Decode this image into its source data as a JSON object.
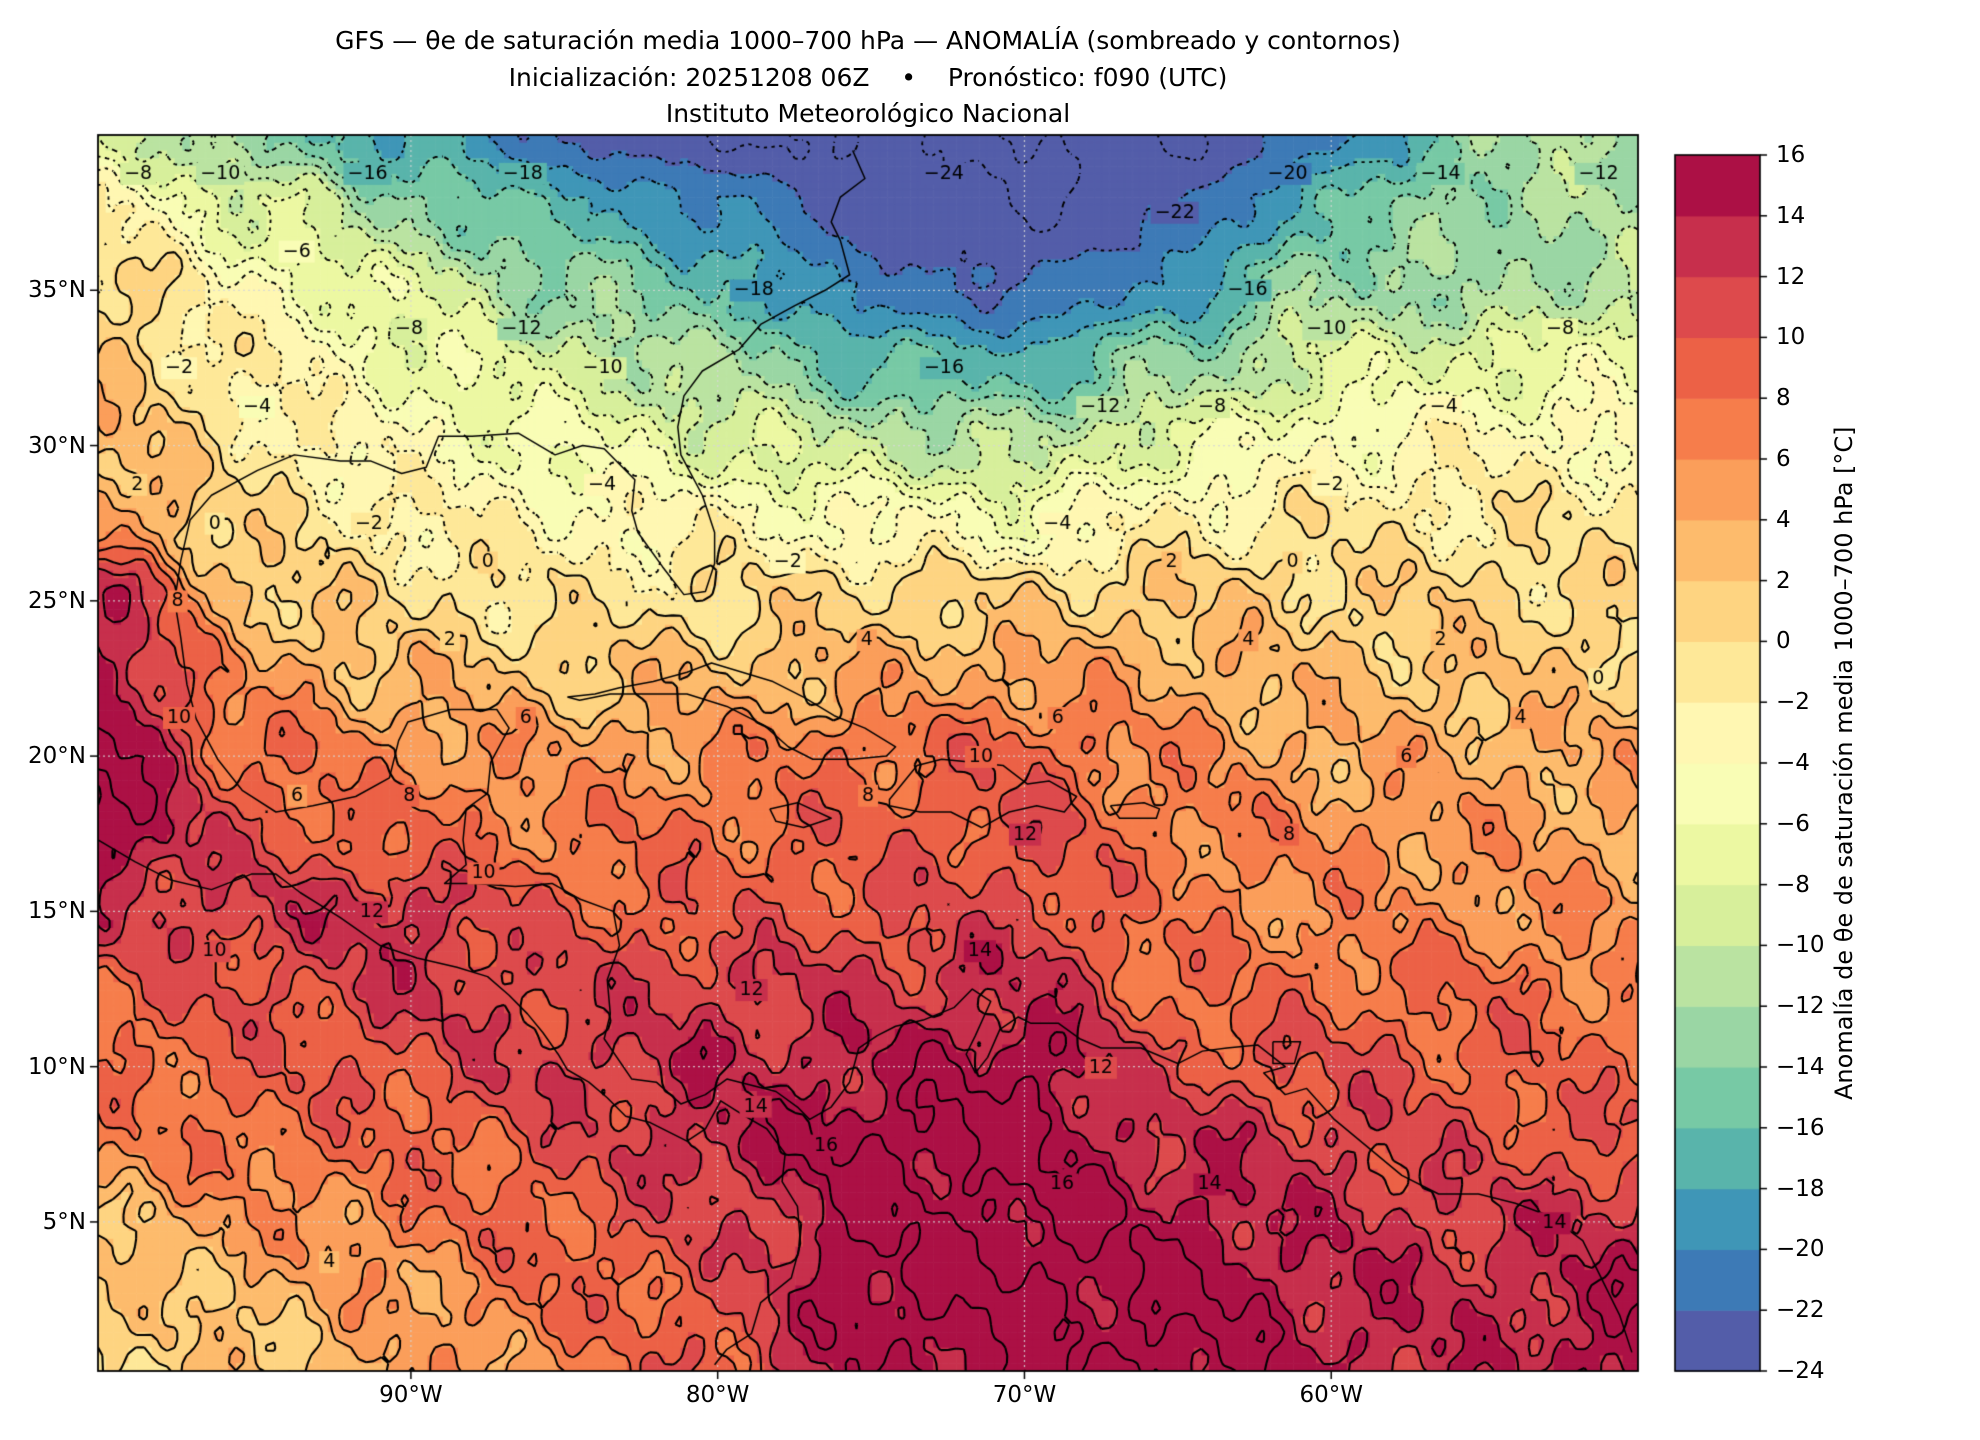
{
  "title": {
    "line1": "GFS — θe de saturación media 1000–700 hPa — ANOMALÍA (sombreado y contornos)",
    "line2": "Inicialización: 20251208 06Z    •    Pronóstico: f090 (UTC)",
    "line3": "Instituto Meteorológico Nacional"
  },
  "chart_data": {
    "type": "heatmap",
    "lon_range": [
      -100.2,
      -50.0
    ],
    "lat_range": [
      0.2,
      40.0
    ],
    "x_ticks": [
      {
        "lon": -90,
        "label": "90°W"
      },
      {
        "lon": -80,
        "label": "80°W"
      },
      {
        "lon": -70,
        "label": "70°W"
      },
      {
        "lon": -60,
        "label": "60°W"
      }
    ],
    "y_ticks": [
      {
        "lat": 35,
        "label": "35°N"
      },
      {
        "lat": 30,
        "label": "30°N"
      },
      {
        "lat": 25,
        "label": "25°N"
      },
      {
        "lat": 20,
        "label": "20°N"
      },
      {
        "lat": 15,
        "label": "15°N"
      },
      {
        "lat": 10,
        "label": "10°N"
      },
      {
        "lat": 5,
        "label": "5°N"
      }
    ],
    "grid_lines": {
      "lons": [
        -90,
        -80,
        -70,
        -60
      ],
      "lats": [
        5,
        10,
        15,
        20,
        25,
        30,
        35
      ]
    },
    "colorbar": {
      "label": "Anomalía de θe de saturación media 1000–700 hPa [°C]",
      "min": -24,
      "max": 16,
      "step": 2,
      "tick_values": [
        16,
        14,
        12,
        10,
        8,
        6,
        4,
        2,
        0,
        -2,
        -4,
        -6,
        -8,
        -10,
        -12,
        -14,
        -16,
        -18,
        -20,
        -22,
        -24
      ],
      "tick_labels": [
        "16",
        "14",
        "12",
        "10",
        "8",
        "6",
        "4",
        "2",
        "0",
        "−2",
        "−4",
        "−6",
        "−8",
        "−10",
        "−12",
        "−14",
        "−16",
        "−18",
        "−20",
        "−22",
        "−24"
      ],
      "colors": [
        "#535da9",
        "#3d7ab6",
        "#3f96b7",
        "#59b4ab",
        "#77c9a5",
        "#9ad6a4",
        "#bae3a1",
        "#d7ef9b",
        "#ecf8a2",
        "#f9fdb5",
        "#fff7b2",
        "#fee898",
        "#fed481",
        "#fdbb6c",
        "#fb9e5a",
        "#f67d4b",
        "#ec6146",
        "#dd4a4c",
        "#c72f4c",
        "#ac1045"
      ]
    },
    "contours": {
      "interval": 2,
      "min": -24,
      "max": 16,
      "negative_style": "dotted",
      "positive_style": "solid",
      "zero_style": "solid",
      "label_values": [
        -24,
        -22,
        -20,
        -18,
        -16,
        -14,
        -12,
        -10,
        -8,
        -6,
        -4,
        -2,
        0,
        2,
        4,
        6,
        8,
        10,
        12,
        14,
        16
      ]
    },
    "grid": {
      "lons": [
        -100,
        -95,
        -90,
        -85,
        -80,
        -75,
        -70,
        -65,
        -60,
        -55,
        -50
      ],
      "lats": [
        40,
        37.5,
        35,
        32.5,
        30,
        27.5,
        25,
        22.5,
        20,
        17.5,
        15,
        12.5,
        10,
        7.5,
        5,
        2.5,
        0
      ],
      "values": [
        [
          -8,
          -14,
          -18,
          -22,
          -24,
          -24,
          -24,
          -24,
          -21,
          -13,
          -11
        ],
        [
          -2,
          -8,
          -13,
          -17,
          -20,
          -23,
          -24,
          -22,
          -16,
          -12,
          -12
        ],
        [
          1,
          -4,
          -8,
          -13,
          -16,
          -21,
          -22,
          -19,
          -12,
          -13,
          -10
        ],
        [
          2,
          -2,
          -6,
          -9,
          -12,
          -16,
          -17,
          -13,
          -8,
          -7,
          -6
        ],
        [
          3,
          -1,
          -4,
          -6,
          -8,
          -10,
          -11,
          -7,
          -4,
          -3,
          -3
        ],
        [
          6,
          0,
          -2,
          -3,
          -3,
          -4,
          -5,
          -2,
          -1,
          -1,
          -1
        ],
        [
          13,
          2,
          0,
          -1,
          0,
          1,
          1,
          2,
          1,
          1,
          0
        ],
        [
          15,
          5,
          3,
          2,
          3,
          4,
          5,
          4,
          2.5,
          2,
          2
        ],
        [
          16,
          8,
          6,
          5,
          6,
          8,
          9,
          6,
          4,
          4,
          4
        ],
        [
          16,
          10,
          8,
          7,
          8,
          9,
          10,
          7,
          6,
          5,
          4
        ],
        [
          12,
          12,
          13,
          9,
          9,
          10,
          11,
          7,
          6,
          6,
          5
        ],
        [
          9,
          10,
          12,
          11,
          12,
          12,
          13,
          8,
          8,
          8,
          7
        ],
        [
          8,
          9,
          10,
          12,
          13,
          14,
          16,
          10,
          10,
          9,
          8
        ],
        [
          6,
          8,
          8,
          10,
          14,
          16,
          16,
          13,
          12,
          10,
          10
        ],
        [
          3,
          5,
          7,
          9,
          11,
          16,
          16,
          15,
          13,
          12,
          13
        ],
        [
          1,
          3,
          5,
          8,
          10,
          16,
          16,
          16,
          14,
          13,
          15
        ],
        [
          0,
          2,
          4,
          6,
          10,
          15,
          16,
          16,
          14,
          13,
          16
        ]
      ]
    }
  }
}
